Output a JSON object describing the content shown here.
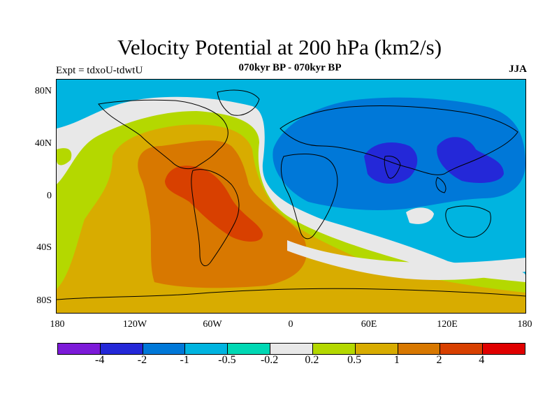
{
  "title": "Velocity Potential at 200 hPa (km2/s)",
  "subtitle_left": "Expt = tdxoU-tdwtU",
  "subtitle_center": "070kyr BP - 070kyr BP",
  "subtitle_right": "JJA",
  "map": {
    "projection": "cylindrical equidistant",
    "background_color": "#00b4e0",
    "coastline_color": "#000000"
  },
  "axes": {
    "y_labels": [
      "80N",
      "40N",
      "0",
      "40S",
      "80S"
    ],
    "x_labels": [
      "180",
      "120W",
      "60W",
      "0",
      "60E",
      "120E",
      "180"
    ]
  },
  "colorbar": {
    "colors": [
      "#7c1ad8",
      "#2428d8",
      "#0078d8",
      "#00b4e0",
      "#00d8b4",
      "#e8e8e8",
      "#b4d800",
      "#d8ac00",
      "#d87800",
      "#d84000",
      "#e00000"
    ],
    "labels": [
      "-4",
      "-2",
      "-1",
      "-0.5",
      "-0.2",
      "0.2",
      "0.5",
      "1",
      "2",
      "4"
    ]
  },
  "chart_data": {
    "type": "heatmap",
    "title": "Velocity Potential at 200 hPa (km2/s)",
    "levels": [
      -4,
      -2,
      -1,
      -0.5,
      -0.2,
      0.2,
      0.5,
      1,
      2,
      4
    ],
    "xlabel": "",
    "ylabel": "",
    "xlim": [
      -180,
      180
    ],
    "ylim": [
      -90,
      90
    ]
  }
}
